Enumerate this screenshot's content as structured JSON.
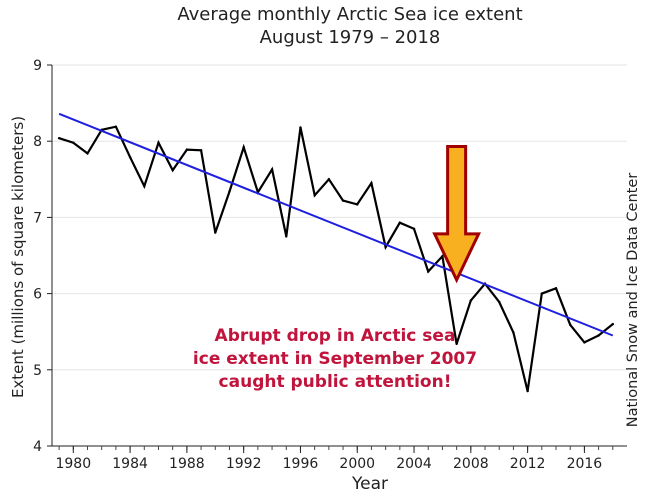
{
  "chart_data": {
    "type": "line",
    "title": "Average monthly Arctic Sea ice extent",
    "subtitle": "August 1979 – 2018",
    "xlabel": "Year",
    "ylabel": "Extent (millions of square kilometers)",
    "credit": "National Snow and Ice Data Center",
    "xlim": [
      1978.5,
      2019
    ],
    "ylim": [
      4,
      9
    ],
    "xticks": [
      1980,
      1984,
      1988,
      1992,
      1996,
      2000,
      2004,
      2008,
      2012,
      2016
    ],
    "yticks": [
      4,
      5,
      6,
      7,
      8,
      9
    ],
    "series": [
      {
        "name": "Extent",
        "color": "#000000",
        "x": [
          1979,
          1980,
          1981,
          1982,
          1983,
          1984,
          1985,
          1986,
          1987,
          1988,
          1989,
          1990,
          1991,
          1992,
          1993,
          1994,
          1995,
          1996,
          1997,
          1998,
          1999,
          2000,
          2001,
          2002,
          2003,
          2004,
          2005,
          2006,
          2007,
          2008,
          2009,
          2010,
          2011,
          2012,
          2013,
          2014,
          2015,
          2016,
          2017,
          2018
        ],
        "values": [
          8.04,
          7.98,
          7.84,
          8.15,
          8.19,
          7.79,
          7.41,
          7.98,
          7.62,
          7.89,
          7.88,
          6.8,
          7.34,
          7.92,
          7.33,
          7.63,
          6.75,
          8.18,
          7.29,
          7.5,
          7.22,
          7.17,
          7.45,
          6.61,
          6.93,
          6.85,
          6.29,
          6.49,
          5.34,
          5.91,
          6.13,
          5.89,
          5.49,
          4.72,
          6.0,
          6.07,
          5.59,
          5.36,
          5.45,
          5.6
        ]
      },
      {
        "name": "Linear trend",
        "color": "#1f1fe0",
        "x": [
          1979,
          2018
        ],
        "values": [
          8.36,
          5.45
        ]
      }
    ],
    "annotation": {
      "lines": [
        "Abrupt drop in Arctic sea",
        "ice extent in September 2007",
        "caught public attention!"
      ],
      "color": "#c0143c",
      "arrow_points_to_year": 2007,
      "arrow_fill": "#f8b020",
      "arrow_outline": "#a00000"
    }
  }
}
